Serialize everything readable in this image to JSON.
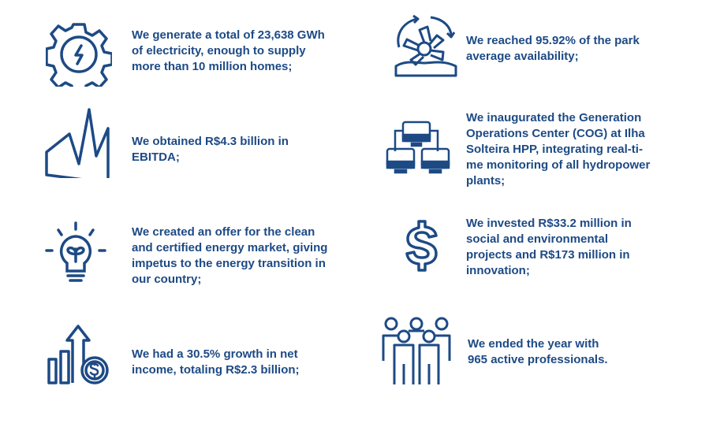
{
  "accent_color": "#1d4a85",
  "items": [
    {
      "icon": "gear-lightning-icon",
      "lines": [
        "We generate a total of 23,638 GWh",
        "of electricity, enough to supply",
        "more than 10 million homes;"
      ]
    },
    {
      "icon": "factory-peaks-icon",
      "lines": [
        "We obtained R$4.3 billion in",
        "EBITDA;"
      ]
    },
    {
      "icon": "lightbulb-plant-icon",
      "lines": [
        "We created an offer for the clean",
        "and certified energy market, giving",
        "impetus to the energy transition in",
        "our country;"
      ]
    },
    {
      "icon": "growth-chart-coin-icon",
      "lines": [
        "We had a 30.5% growth in net",
        "income, totaling R$2.3 billion;"
      ]
    },
    {
      "icon": "turbine-cycle-icon",
      "lines": [
        "We reached 95.92% of the park",
        "average availability;"
      ]
    },
    {
      "icon": "network-computers-icon",
      "lines": [
        "We inaugurated the Generation",
        "Operations Center (COG) at Ilha",
        "Solteira HPP, integrating real-ti-",
        "me monitoring of all hydropower",
        "plants;"
      ]
    },
    {
      "icon": "dollar-sign-icon",
      "lines": [
        "We invested R$33.2 million in",
        "social and environmental",
        "projects and R$173 million in",
        "innovation;"
      ]
    },
    {
      "icon": "people-group-icon",
      "lines": [
        "We ended the year with",
        "965 active professionals."
      ]
    }
  ]
}
